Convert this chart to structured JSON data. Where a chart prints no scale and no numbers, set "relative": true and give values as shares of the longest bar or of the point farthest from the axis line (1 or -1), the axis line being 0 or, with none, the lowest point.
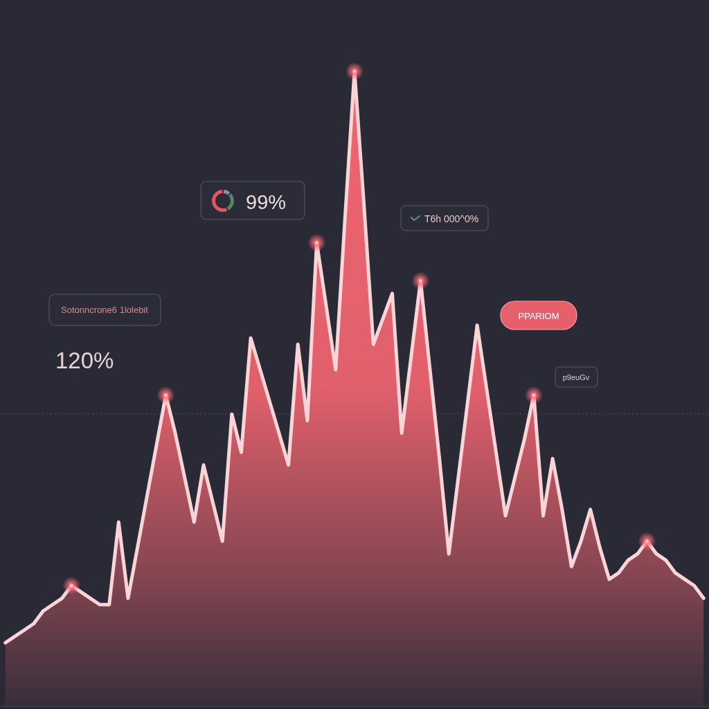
{
  "chart_data": {
    "type": "area",
    "relative": true,
    "categories": [
      null,
      null,
      null,
      null,
      null,
      null,
      null,
      null,
      null,
      null,
      null,
      null,
      null,
      null,
      null,
      null,
      null,
      null,
      null,
      null,
      null,
      null,
      null,
      null,
      null,
      null,
      null,
      null,
      null,
      null,
      null,
      null,
      null,
      null,
      null,
      null,
      null,
      null,
      null,
      null,
      null,
      null,
      null,
      null,
      null,
      null,
      null,
      null,
      null,
      null,
      null,
      null,
      null,
      null,
      null,
      null,
      null,
      null,
      null,
      null,
      null,
      null,
      null,
      null,
      null,
      null,
      null,
      null,
      null,
      null,
      null,
      null,
      null,
      null,
      null
    ],
    "series": [
      {
        "color": "#f06571",
        "values": [
          0.1,
          0.11,
          0.12,
          0.13,
          0.15,
          0.16,
          0.17,
          0.19,
          0.18,
          0.17,
          0.16,
          0.16,
          0.29,
          0.17,
          0.25,
          0.33,
          0.41,
          0.49,
          0.43,
          0.36,
          0.29,
          0.38,
          0.32,
          0.26,
          0.46,
          0.4,
          0.58,
          0.53,
          0.48,
          0.43,
          0.38,
          0.57,
          0.45,
          0.73,
          0.63,
          0.53,
          0.77,
          1,
          0.79,
          0.57,
          0.61,
          0.65,
          0.43,
          0.55,
          0.67,
          0.53,
          0.39,
          0.24,
          0.36,
          0.48,
          0.6,
          0.5,
          0.4,
          0.3,
          0.36,
          0.42,
          0.49,
          0.3,
          0.39,
          0.31,
          0.22,
          0.26,
          0.31,
          0.25,
          0.2,
          0.21,
          0.23,
          0.24,
          0.26,
          0.24,
          0.23,
          0.21,
          0.2,
          0.19,
          0.17
        ]
      }
    ],
    "ref_lines": [
      {
        "axis": "y",
        "value": 0.46,
        "color": "#4a4858",
        "line_style": "dotted"
      }
    ],
    "annotations": [
      "Sotonncrone6 1lolebit",
      "120%",
      "99%",
      "T6h 000^0%",
      "PPARIOM",
      "p9euGv"
    ]
  }
}
